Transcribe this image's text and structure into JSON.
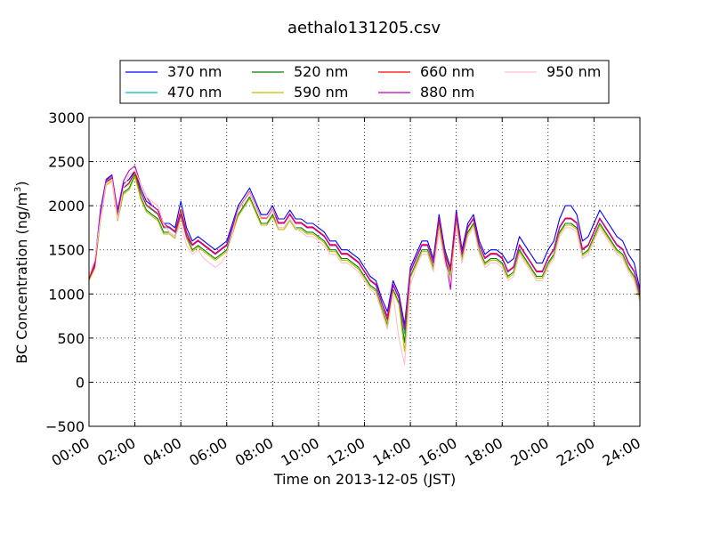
{
  "chart_data": {
    "type": "line",
    "title": "aethalo131205.csv",
    "xlabel": "Time on 2013-12-05 (JST)",
    "ylabel": "BC Concentration (ng/m³)",
    "ylabel_main": "BC Concentration (ng/m",
    "ylabel_sup": "3",
    "ylabel_end": ")",
    "xlim": [
      0,
      24
    ],
    "ylim": [
      -500,
      3000
    ],
    "grid": true,
    "legend_position": "top",
    "x_ticks": [
      0,
      2,
      4,
      6,
      8,
      10,
      12,
      14,
      16,
      18,
      20,
      22,
      24
    ],
    "x_tick_labels": [
      "00:00",
      "02:00",
      "04:00",
      "06:00",
      "08:00",
      "10:00",
      "12:00",
      "14:00",
      "16:00",
      "18:00",
      "20:00",
      "22:00",
      "24:00"
    ],
    "y_ticks": [
      -500,
      0,
      500,
      1000,
      1500,
      2000,
      2500,
      3000
    ],
    "y_tick_labels": [
      "−500",
      "0",
      "500",
      "1000",
      "1500",
      "2000",
      "2500",
      "3000"
    ],
    "x": [
      0.0,
      0.25,
      0.5,
      0.75,
      1.0,
      1.25,
      1.5,
      1.75,
      2.0,
      2.25,
      2.5,
      2.75,
      3.0,
      3.25,
      3.5,
      3.75,
      4.0,
      4.25,
      4.5,
      4.75,
      5.0,
      5.25,
      5.5,
      5.75,
      6.0,
      6.25,
      6.5,
      6.75,
      7.0,
      7.25,
      7.5,
      7.75,
      8.0,
      8.25,
      8.5,
      8.75,
      9.0,
      9.25,
      9.5,
      9.75,
      10.0,
      10.25,
      10.5,
      10.75,
      11.0,
      11.25,
      11.5,
      11.75,
      12.0,
      12.25,
      12.5,
      12.75,
      13.0,
      13.25,
      13.5,
      13.75,
      14.0,
      14.25,
      14.5,
      14.75,
      15.0,
      15.25,
      15.5,
      15.75,
      16.0,
      16.25,
      16.5,
      16.75,
      17.0,
      17.25,
      17.5,
      17.75,
      18.0,
      18.25,
      18.5,
      18.75,
      19.0,
      19.25,
      19.5,
      19.75,
      20.0,
      20.25,
      20.5,
      20.75,
      21.0,
      21.25,
      21.5,
      21.75,
      22.0,
      22.25,
      22.5,
      22.75,
      23.0,
      23.25,
      23.5,
      23.75,
      24.0
    ],
    "series": [
      {
        "name": "370 nm",
        "color": "#0000ff",
        "values": [
          1200,
          1350,
          1950,
          2300,
          2350,
          1900,
          2250,
          2300,
          2400,
          2200,
          2050,
          2000,
          1950,
          1800,
          1800,
          1750,
          2050,
          1750,
          1600,
          1650,
          1600,
          1550,
          1500,
          1550,
          1600,
          1800,
          2000,
          2100,
          2200,
          2050,
          1900,
          1900,
          2000,
          1850,
          1850,
          1950,
          1850,
          1850,
          1800,
          1800,
          1750,
          1700,
          1600,
          1600,
          1500,
          1500,
          1450,
          1400,
          1300,
          1200,
          1150,
          950,
          800,
          1150,
          1000,
          650,
          1300,
          1450,
          1600,
          1600,
          1400,
          1900,
          1500,
          1300,
          1950,
          1500,
          1800,
          1900,
          1600,
          1450,
          1500,
          1500,
          1450,
          1350,
          1400,
          1650,
          1550,
          1450,
          1350,
          1350,
          1500,
          1600,
          1850,
          2000,
          2000,
          1900,
          1600,
          1650,
          1800,
          1950,
          1850,
          1750,
          1650,
          1600,
          1450,
          1350,
          1050
        ]
      },
      {
        "name": "470 nm",
        "color": "#00bfbf",
        "values": [
          1180,
          1320,
          1900,
          2280,
          2320,
          1880,
          2200,
          2250,
          2380,
          2150,
          2000,
          1950,
          1900,
          1750,
          1750,
          1700,
          1950,
          1680,
          1550,
          1600,
          1550,
          1500,
          1450,
          1500,
          1550,
          1750,
          1950,
          2050,
          2150,
          2000,
          1850,
          1850,
          1950,
          1800,
          1800,
          1900,
          1800,
          1800,
          1750,
          1750,
          1700,
          1650,
          1550,
          1550,
          1450,
          1450,
          1400,
          1350,
          1250,
          1150,
          1100,
          900,
          700,
          1100,
          950,
          550,
          1250,
          1400,
          1550,
          1550,
          1350,
          1850,
          1450,
          1250,
          1900,
          1450,
          1750,
          1850,
          1550,
          1400,
          1450,
          1450,
          1400,
          1250,
          1300,
          1550,
          1450,
          1350,
          1250,
          1250,
          1400,
          1500,
          1750,
          1850,
          1850,
          1800,
          1500,
          1550,
          1700,
          1850,
          1750,
          1650,
          1550,
          1500,
          1350,
          1250,
          1000
        ]
      },
      {
        "name": "520 nm",
        "color": "#008000",
        "values": [
          1160,
          1300,
          1850,
          2250,
          2300,
          1850,
          2150,
          2200,
          2350,
          2100,
          1950,
          1900,
          1850,
          1700,
          1700,
          1650,
          1900,
          1650,
          1500,
          1550,
          1500,
          1450,
          1400,
          1450,
          1500,
          1700,
          1900,
          2000,
          2100,
          1950,
          1800,
          1800,
          1900,
          1750,
          1750,
          1850,
          1750,
          1750,
          1700,
          1700,
          1650,
          1600,
          1500,
          1500,
          1400,
          1400,
          1350,
          1300,
          1200,
          1100,
          1050,
          850,
          650,
          1050,
          900,
          450,
          1200,
          1350,
          1500,
          1500,
          1300,
          1800,
          1400,
          1200,
          1850,
          1400,
          1700,
          1800,
          1500,
          1350,
          1400,
          1400,
          1350,
          1200,
          1250,
          1500,
          1400,
          1300,
          1200,
          1200,
          1350,
          1450,
          1700,
          1800,
          1800,
          1750,
          1450,
          1500,
          1650,
          1800,
          1700,
          1600,
          1500,
          1450,
          1300,
          1200,
          950
        ]
      },
      {
        "name": "590 nm",
        "color": "#bfbf00",
        "values": [
          1150,
          1290,
          1830,
          2230,
          2280,
          1830,
          2130,
          2180,
          2330,
          2080,
          1930,
          1880,
          1830,
          1680,
          1680,
          1630,
          1880,
          1630,
          1480,
          1530,
          1480,
          1430,
          1380,
          1430,
          1480,
          1680,
          1880,
          1980,
          2080,
          1930,
          1780,
          1780,
          1880,
          1730,
          1730,
          1830,
          1730,
          1730,
          1680,
          1680,
          1630,
          1580,
          1480,
          1480,
          1380,
          1380,
          1330,
          1280,
          1180,
          1080,
          1030,
          830,
          630,
          1030,
          880,
          350,
          1180,
          1330,
          1480,
          1480,
          1280,
          1780,
          1380,
          1180,
          1830,
          1380,
          1680,
          1780,
          1480,
          1330,
          1380,
          1380,
          1330,
          1180,
          1230,
          1480,
          1380,
          1280,
          1180,
          1180,
          1330,
          1430,
          1680,
          1780,
          1780,
          1730,
          1430,
          1480,
          1630,
          1780,
          1680,
          1580,
          1480,
          1430,
          1280,
          1180,
          930
        ]
      },
      {
        "name": "660 nm",
        "color": "#ff0000",
        "values": [
          1170,
          1310,
          1880,
          2270,
          2310,
          1870,
          2200,
          2260,
          2390,
          2160,
          2010,
          1960,
          1910,
          1760,
          1760,
          1710,
          1960,
          1700,
          1560,
          1610,
          1560,
          1510,
          1460,
          1510,
          1560,
          1760,
          1960,
          2060,
          2160,
          2010,
          1860,
          1860,
          1960,
          1810,
          1810,
          1910,
          1810,
          1810,
          1760,
          1760,
          1710,
          1660,
          1560,
          1560,
          1460,
          1460,
          1410,
          1360,
          1260,
          1160,
          1110,
          910,
          710,
          1110,
          960,
          600,
          1260,
          1410,
          1560,
          1560,
          1360,
          1860,
          1460,
          1260,
          1910,
          1460,
          1760,
          1860,
          1560,
          1410,
          1460,
          1460,
          1410,
          1260,
          1310,
          1560,
          1460,
          1360,
          1260,
          1260,
          1410,
          1510,
          1760,
          1860,
          1860,
          1810,
          1510,
          1560,
          1710,
          1860,
          1760,
          1660,
          1560,
          1510,
          1360,
          1260,
          1010
        ]
      },
      {
        "name": "880 nm",
        "color": "#bf00bf",
        "values": [
          1190,
          1340,
          1920,
          2290,
          2340,
          1950,
          2280,
          2400,
          2450,
          2250,
          2100,
          2000,
          1950,
          1800,
          1750,
          1700,
          1900,
          1650,
          1550,
          1600,
          1550,
          1500,
          1450,
          1500,
          1550,
          1750,
          1950,
          2050,
          2150,
          2000,
          1850,
          1850,
          1950,
          1800,
          1800,
          1900,
          1800,
          1800,
          1750,
          1750,
          1700,
          1650,
          1550,
          1550,
          1450,
          1450,
          1400,
          1350,
          1250,
          1150,
          1100,
          900,
          750,
          1100,
          950,
          600,
          1250,
          1400,
          1550,
          1550,
          1350,
          1850,
          1450,
          1050,
          1900,
          1450,
          1750,
          1850,
          1550,
          1400,
          1450,
          1450,
          1400,
          1250,
          1300,
          1550,
          1450,
          1350,
          1250,
          1250,
          1400,
          1500,
          1750,
          1850,
          1850,
          1800,
          1500,
          1550,
          1700,
          1850,
          1750,
          1650,
          1550,
          1500,
          1350,
          1250,
          1000
        ]
      },
      {
        "name": "950 nm",
        "color": "#ffc0cb",
        "values": [
          1200,
          1380,
          1850,
          2250,
          2300,
          1850,
          2200,
          2350,
          2400,
          2250,
          2100,
          2050,
          2000,
          1800,
          1700,
          1650,
          1800,
          1550,
          1450,
          1500,
          1400,
          1350,
          1300,
          1350,
          1450,
          1700,
          1950,
          2050,
          2150,
          2000,
          1850,
          1850,
          1950,
          1750,
          1750,
          1850,
          1750,
          1700,
          1650,
          1650,
          1600,
          1550,
          1450,
          1450,
          1350,
          1350,
          1300,
          1250,
          1150,
          1050,
          1000,
          800,
          600,
          1000,
          500,
          200,
          1100,
          1300,
          1450,
          1450,
          1250,
          1700,
          1350,
          1150,
          1750,
          1350,
          1650,
          1750,
          1450,
          1300,
          1350,
          1350,
          1300,
          1150,
          1200,
          1450,
          1350,
          1250,
          1150,
          1150,
          1300,
          1400,
          1650,
          1750,
          1750,
          1700,
          1400,
          1450,
          1600,
          1750,
          1650,
          1550,
          1450,
          1400,
          1250,
          1150,
          900
        ]
      }
    ]
  }
}
